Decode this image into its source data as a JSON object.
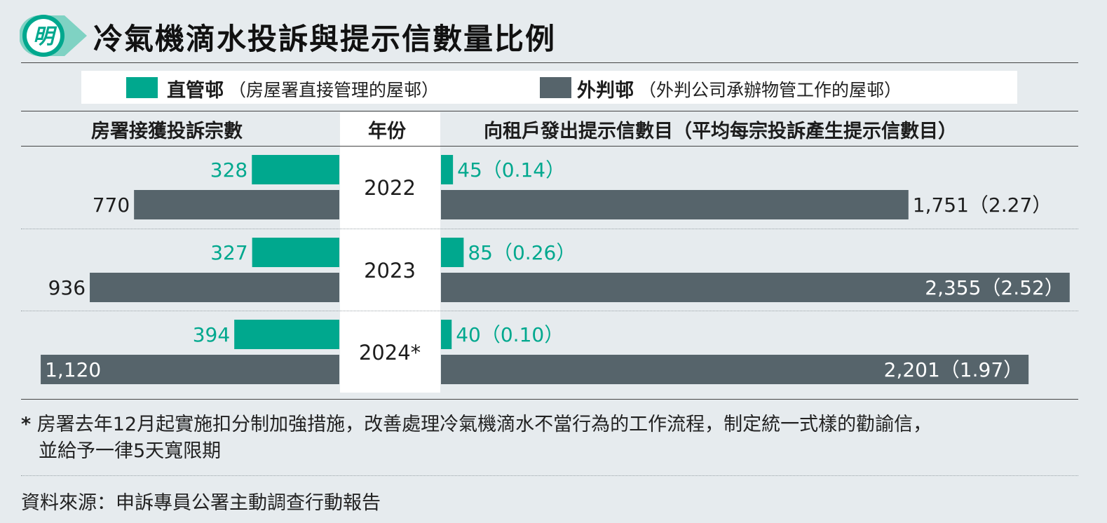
{
  "logo_char": "明",
  "title": "冷氣機滴水投訴與提示信數量比例",
  "legend": [
    {
      "name": "直管邨",
      "desc": "（房屋署直接管理的屋邨）",
      "color": "#00a88e"
    },
    {
      "name": "外判邨",
      "desc": "（外判公司承辦物管工作的屋邨）",
      "color": "#56646b"
    }
  ],
  "headers": {
    "left": "房署接獲投訴宗數",
    "middle": "年份",
    "right": "向租戶發出提示信數目（平均每宗投訴產生提示信數目）"
  },
  "chart_data": {
    "type": "bar",
    "categories": [
      "2022",
      "2023",
      "2024*"
    ],
    "series": [
      {
        "name": "直管邨",
        "complaints": [
          328,
          327,
          394
        ],
        "letters": [
          45,
          85,
          40
        ],
        "ratio": [
          "0.14",
          "0.26",
          "0.10"
        ],
        "color": "#00a88e"
      },
      {
        "name": "外判邨",
        "complaints": [
          770,
          936,
          1120
        ],
        "letters": [
          1751,
          2355,
          2201
        ],
        "ratio": [
          "2.27",
          "2.52",
          "1.97"
        ],
        "color": "#56646b"
      }
    ],
    "complaints_labels": [
      [
        "328",
        "770"
      ],
      [
        "327",
        "936"
      ],
      [
        "394",
        "1,120"
      ]
    ],
    "letters_labels": [
      [
        "45（0.14）",
        "1,751（2.27）"
      ],
      [
        "85（0.26）",
        "2,355（2.52）"
      ],
      [
        "40（0.10）",
        "2,201（1.97）"
      ]
    ]
  },
  "footnote": {
    "star": "*",
    "line1": "房署去年12月起實施扣分制加強措施，改善處理冷氣機滴水不當行為的工作流程，制定統一式樣的勸諭信，",
    "line2": "並給予一律5天寬限期"
  },
  "source": "資料來源：申訴專員公署主動調查行動報告"
}
